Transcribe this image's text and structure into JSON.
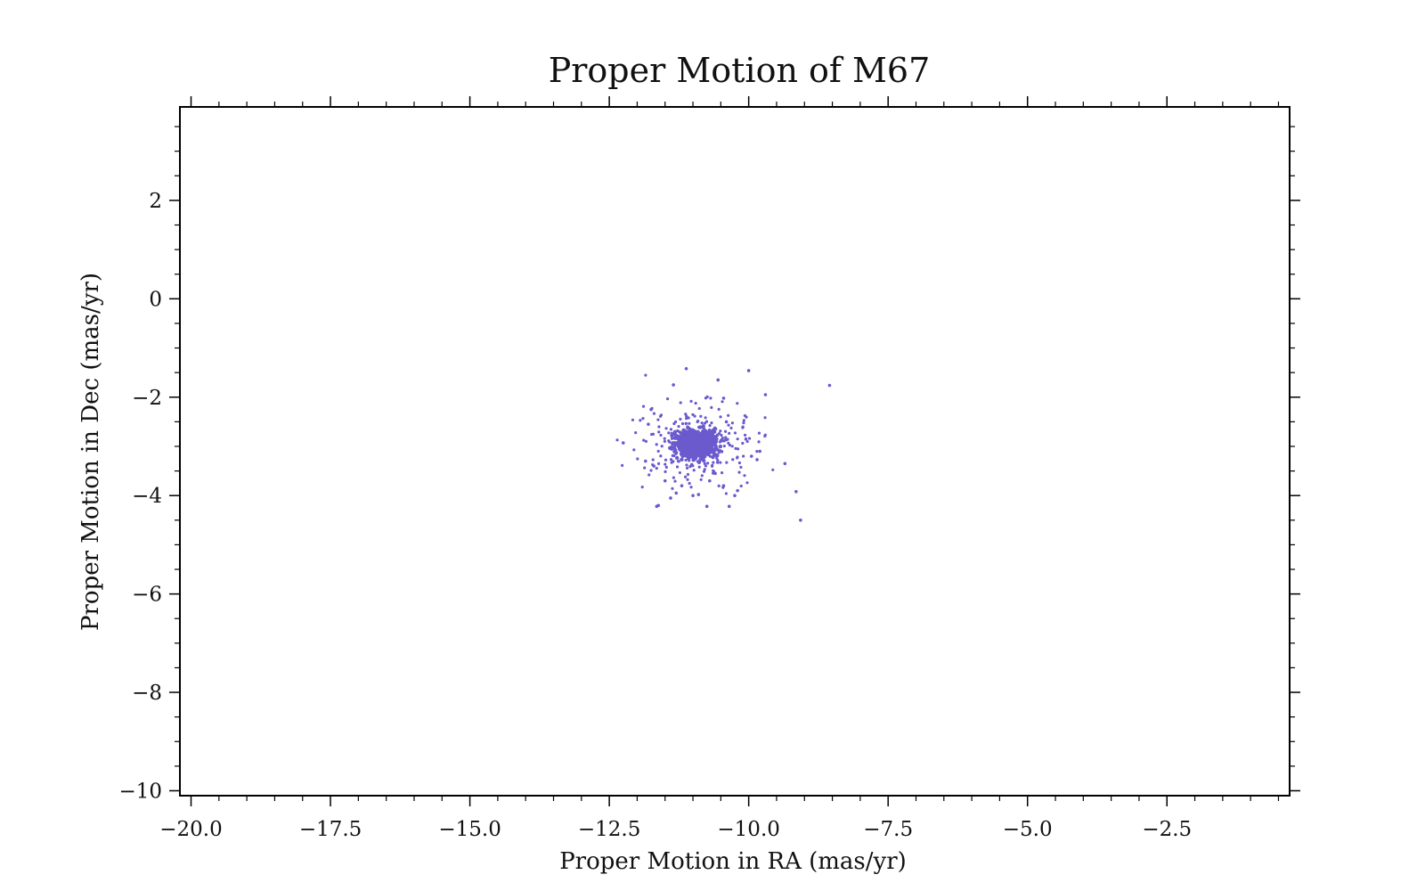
{
  "chart_data": {
    "type": "scatter",
    "title": "Proper Motion of M67",
    "xlabel": "Proper Motion in RA (mas/yr)",
    "ylabel": "Proper Motion in Dec (mas/yr)",
    "xlim": [
      -20.2,
      -0.3
    ],
    "ylim": [
      -10.1,
      3.9
    ],
    "xticks": [
      -20.0,
      -17.5,
      -15.0,
      -12.5,
      -10.0,
      -7.5,
      -5.0,
      -2.5
    ],
    "xtick_labels": [
      "−20.0",
      "−17.5",
      "−15.0",
      "−12.5",
      "−10.0",
      "−7.5",
      "−5.0",
      "−2.5"
    ],
    "yticks": [
      2,
      0,
      -2,
      -4,
      -6,
      -8,
      -10
    ],
    "ytick_labels": [
      "2",
      "0",
      "−2",
      "−4",
      "−6",
      "−8",
      "−10"
    ],
    "grid": false,
    "legend": false,
    "marker_color": "#6a5acd",
    "outliers": [
      [
        -11.12,
        -1.42
      ],
      [
        -10.0,
        -1.46
      ],
      [
        -8.55,
        -1.76
      ],
      [
        -10.55,
        -1.65
      ],
      [
        -9.7,
        -1.95
      ],
      [
        -10.45,
        -2.02
      ],
      [
        -11.35,
        -1.75
      ],
      [
        -12.25,
        -2.93
      ],
      [
        -9.35,
        -3.35
      ],
      [
        -9.15,
        -3.92
      ],
      [
        -9.07,
        -4.5
      ],
      [
        -11.65,
        -4.22
      ],
      [
        -11.62,
        -4.2
      ],
      [
        -10.75,
        -4.22
      ],
      [
        -10.35,
        -4.22
      ],
      [
        -10.2,
        -3.9
      ],
      [
        -10.25,
        -4.0
      ],
      [
        -9.85,
        -3.27
      ],
      [
        -9.95,
        -3.2
      ],
      [
        -10.05,
        -2.85
      ],
      [
        -9.8,
        -3.1
      ],
      [
        -11.8,
        -2.55
      ],
      [
        -11.75,
        -2.25
      ],
      [
        -11.85,
        -3.3
      ],
      [
        -11.7,
        -3.4
      ],
      [
        -11.3,
        -3.95
      ],
      [
        -10.9,
        -3.98
      ],
      [
        -11.0,
        -4.0
      ],
      [
        -11.4,
        -4.05
      ],
      [
        -10.7,
        -3.7
      ],
      [
        -10.6,
        -3.55
      ],
      [
        -11.5,
        -3.7
      ],
      [
        -10.4,
        -2.5
      ],
      [
        -10.45,
        -3.8
      ],
      [
        -11.2,
        -3.8
      ]
    ],
    "cluster": {
      "center": [
        -10.95,
        -2.95
      ],
      "core_points": 900,
      "halo_points": 260
    }
  }
}
